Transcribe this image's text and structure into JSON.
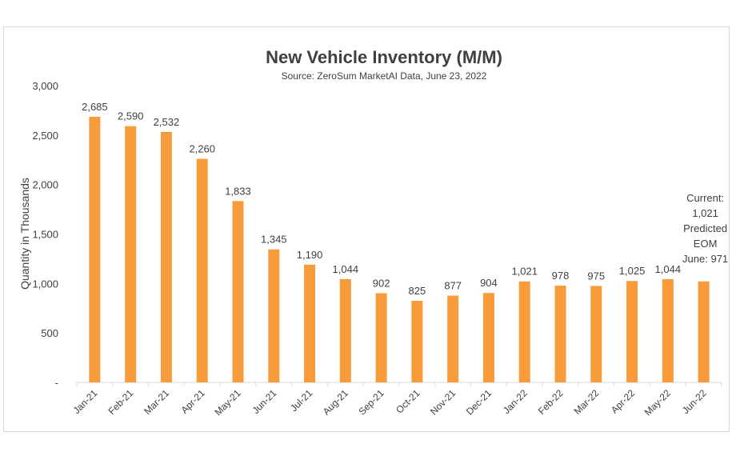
{
  "chart_data": {
    "type": "bar",
    "title": "New Vehicle Inventory (M/M)",
    "subtitle": "Source: ZeroSum MarketAI Data, June 23, 2022",
    "xlabel": "",
    "ylabel": "Quantity in Thousands",
    "ylim": [
      0,
      3000
    ],
    "yticks": [
      0,
      500,
      1000,
      1500,
      2000,
      2500,
      3000
    ],
    "ytick_labels": [
      "-",
      "500",
      "1,000",
      "1,500",
      "2,000",
      "2,500",
      "3,000"
    ],
    "grid": false,
    "bar_color": "#F89C3B",
    "categories": [
      "Jan-21",
      "Feb-21",
      "Mar-21",
      "Apr-21",
      "May-21",
      "Jun-21",
      "Jul-21",
      "Aug-21",
      "Sep-21",
      "Oct-21",
      "Nov-21",
      "Dec-21",
      "Jan-22",
      "Feb-22",
      "Mar-22",
      "Apr-22",
      "May-22",
      "Jun-22"
    ],
    "values": [
      2685,
      2590,
      2532,
      2260,
      1833,
      1345,
      1190,
      1044,
      902,
      825,
      877,
      904,
      1021,
      978,
      975,
      1025,
      1044,
      1021
    ],
    "data_labels": [
      "2,685",
      "2,590",
      "2,532",
      "2,260",
      "1,833",
      "1,345",
      "1,190",
      "1,044",
      "902",
      "825",
      "877",
      "904",
      "1,021",
      "978",
      "975",
      "1,025",
      "1,044",
      ""
    ],
    "annotation": [
      "Current:",
      "1,021",
      "Predicted",
      "EOM",
      "June: 971"
    ]
  }
}
